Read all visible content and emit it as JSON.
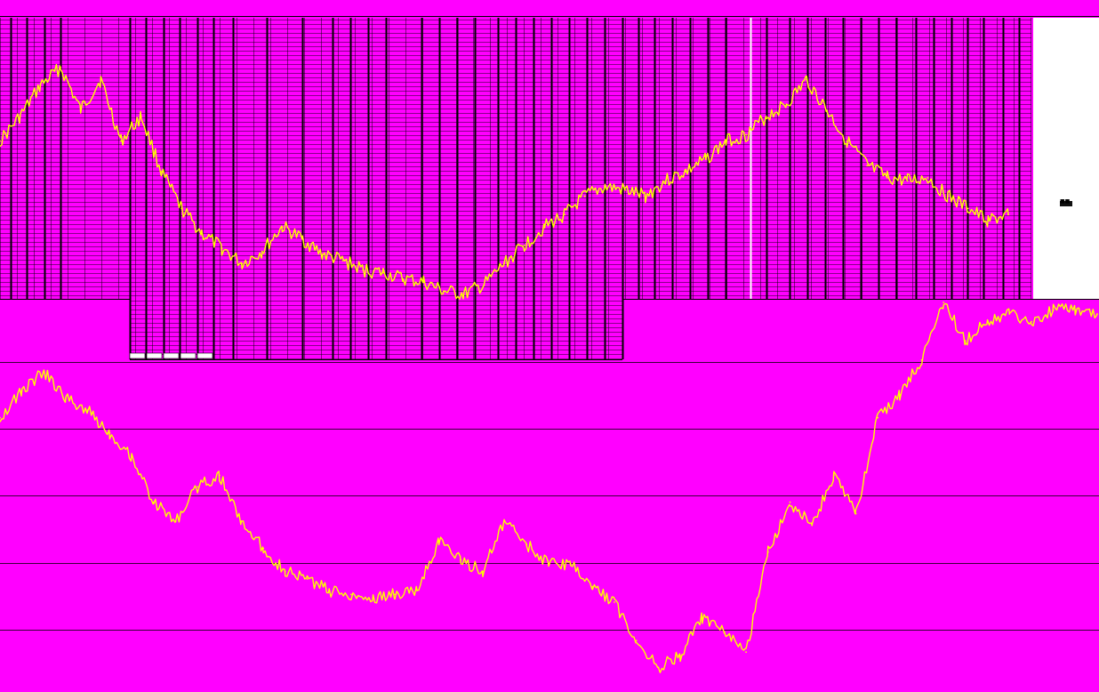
{
  "chart_data": [
    {
      "type": "line",
      "panel": "upper",
      "title": "",
      "xlabel": "",
      "ylabel": "",
      "grid": true,
      "background": "#ff00ff",
      "line_color": "#ffff00",
      "ylim": [
        0,
        100
      ],
      "x": [
        0,
        2,
        4,
        6,
        8,
        10,
        12,
        14,
        16,
        18,
        20,
        22,
        24,
        26,
        28,
        30,
        32,
        34,
        36,
        38,
        40,
        42,
        44,
        46,
        48,
        50,
        52,
        54,
        56,
        58,
        60,
        62,
        64,
        66,
        68,
        70,
        72,
        74,
        76,
        78,
        80,
        82,
        84,
        86,
        88,
        90,
        92,
        94,
        96,
        98,
        100
      ],
      "series": [
        {
          "values": [
            70,
            78,
            88,
            94,
            80,
            90,
            70,
            78,
            60,
            48,
            40,
            35,
            30,
            34,
            42,
            38,
            33,
            31,
            28,
            27,
            25,
            24,
            21,
            20,
            23,
            30,
            36,
            42,
            46,
            52,
            55,
            54,
            52,
            57,
            60,
            64,
            70,
            72,
            78,
            82,
            90,
            80,
            70,
            62,
            58,
            57,
            58,
            52,
            48,
            44,
            46
          ]
        }
      ]
    },
    {
      "type": "line",
      "panel": "lower",
      "title": "",
      "xlabel": "",
      "ylabel": "",
      "grid": true,
      "background": "#ff00ff",
      "line_color": "#ffff00",
      "ylim": [
        0,
        100
      ],
      "x": [
        0,
        2,
        4,
        6,
        8,
        10,
        12,
        14,
        16,
        18,
        20,
        22,
        24,
        26,
        28,
        30,
        32,
        34,
        36,
        38,
        40,
        42,
        44,
        46,
        48,
        50,
        52,
        54,
        56,
        58,
        60,
        62,
        64,
        66,
        68,
        70,
        72,
        74,
        76,
        78,
        80,
        82,
        84,
        86,
        88,
        90,
        92,
        94,
        96,
        98,
        100
      ],
      "series": [
        {
          "values": [
            70,
            77,
            82,
            75,
            72,
            66,
            60,
            48,
            43,
            52,
            55,
            43,
            36,
            30,
            28,
            25,
            24,
            23,
            24,
            25,
            38,
            33,
            30,
            43,
            37,
            32,
            32,
            26,
            22,
            12,
            5,
            8,
            18,
            14,
            9,
            35,
            48,
            42,
            55,
            45,
            70,
            76,
            85,
            100,
            90,
            95,
            97,
            95,
            98,
            98,
            97
          ]
        }
      ]
    }
  ],
  "legend_text": "■■"
}
